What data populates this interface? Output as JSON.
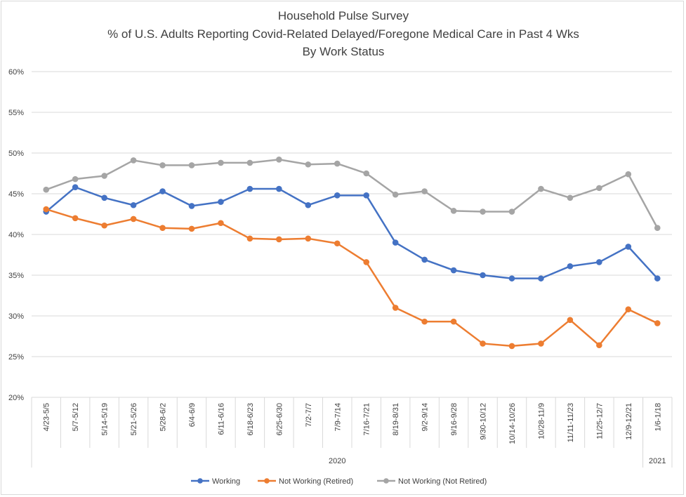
{
  "chart_data": {
    "type": "line",
    "title": [
      "Household Pulse Survey",
      "% of U.S. Adults Reporting Covid-Related Delayed/Foregone Medical Care in Past 4 Wks",
      "By Work Status"
    ],
    "categories": [
      "4/23-5/5",
      "5/7-5/12",
      "5/14-5/19",
      "5/21-5/26",
      "5/28-6/2",
      "6/4-6/9",
      "6/11-6/16",
      "6/18-6/23",
      "6/25-6/30",
      "7/2-7/7",
      "7/9-7/14",
      "7/16-7/21",
      "8/19-8/31",
      "9/2-9/14",
      "9/16-9/28",
      "9/30-10/12",
      "10/14-10/26",
      "10/28-11/9",
      "11/11-11/23",
      "11/25-12/7",
      "12/9-12/21",
      "1/6-1/18"
    ],
    "year_groups": [
      {
        "label": "2020",
        "start": 0,
        "end": 20
      },
      {
        "label": "2021",
        "start": 21,
        "end": 21
      }
    ],
    "ylim": [
      20,
      60
    ],
    "yticks": [
      20,
      25,
      30,
      35,
      40,
      45,
      50,
      55,
      60
    ],
    "ytick_labels": [
      "20%",
      "25%",
      "30%",
      "35%",
      "40%",
      "45%",
      "50%",
      "55%",
      "60%"
    ],
    "grid": true,
    "legend_position": "bottom",
    "series": [
      {
        "name": "Working",
        "color": "#4472c4",
        "values": [
          42.8,
          45.8,
          44.5,
          43.6,
          45.3,
          43.5,
          44.0,
          45.6,
          45.6,
          43.6,
          44.8,
          44.8,
          39.0,
          36.9,
          35.6,
          35.0,
          34.6,
          34.6,
          36.1,
          36.6,
          38.5,
          34.6
        ]
      },
      {
        "name": "Not Working (Retired)",
        "color": "#ed7d31",
        "values": [
          43.1,
          42.0,
          41.1,
          41.9,
          40.8,
          40.7,
          41.4,
          39.5,
          39.4,
          39.5,
          38.9,
          36.6,
          31.0,
          29.3,
          29.3,
          26.6,
          26.3,
          26.6,
          29.5,
          26.4,
          30.8,
          29.1
        ]
      },
      {
        "name": "Not Working (Not Retired)",
        "color": "#a5a5a5",
        "values": [
          45.5,
          46.8,
          47.2,
          49.1,
          48.5,
          48.5,
          48.8,
          48.8,
          49.2,
          48.6,
          48.7,
          47.5,
          44.9,
          45.3,
          42.9,
          42.8,
          42.8,
          45.6,
          44.5,
          45.7,
          47.4,
          40.8
        ]
      }
    ]
  }
}
